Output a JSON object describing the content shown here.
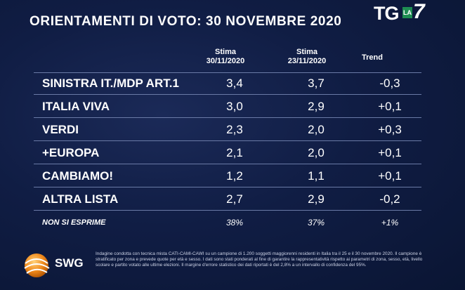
{
  "title": "ORIENTAMENTI DI VOTO: 30 NOVEMBRE 2020",
  "broadcaster": {
    "tg": "TG",
    "la": "LA",
    "seven": "7"
  },
  "columns": {
    "stima1": {
      "line1": "Stima",
      "line2": "30/11/2020"
    },
    "stima2": {
      "line1": "Stima",
      "line2": "23/11/2020"
    },
    "trend": "Trend"
  },
  "rows": [
    {
      "label": "SINISTRA IT./MDP ART.1",
      "s1": "3,4",
      "s2": "3,7",
      "trend": "-0,3"
    },
    {
      "label": "ITALIA VIVA",
      "s1": "3,0",
      "s2": "2,9",
      "trend": "+0,1"
    },
    {
      "label": "VERDI",
      "s1": "2,3",
      "s2": "2,0",
      "trend": "+0,3"
    },
    {
      "label": "+EUROPA",
      "s1": "2,1",
      "s2": "2,0",
      "trend": "+0,1"
    },
    {
      "label": "CAMBIAMO!",
      "s1": "1,2",
      "s2": "1,1",
      "trend": "+0,1"
    },
    {
      "label": "ALTRA LISTA",
      "s1": "2,7",
      "s2": "2,9",
      "trend": "-0,2"
    }
  ],
  "no_answer": {
    "label": "NON SI ESPRIME",
    "s1": "38%",
    "s2": "37%",
    "trend": "+1%"
  },
  "footer": {
    "brand": "SWG",
    "note": "Indagine condotta con tecnica mista CATI-CAMI-CAWI su un campione di 1.200 soggetti maggiorenni residenti in Italia tra il 25 e il 30 novembre 2020. Il campione è stratificato per zona e prevede quote per età e sesso. I dati sono stati ponderati al fine di garantire la rappresentatività rispetto ai parametri di zona, sesso, età, livello scolare e partito votato alle ultime elezioni. Il margine d'errore statistico dei dati riportati è del 2,8% a un intervallo di confidenza del 95%."
  },
  "colors": {
    "background": "#0c1737",
    "rule": "#6a7aa6",
    "la7_green": "#1e8d52",
    "swg_orange": "#f08a1c"
  }
}
